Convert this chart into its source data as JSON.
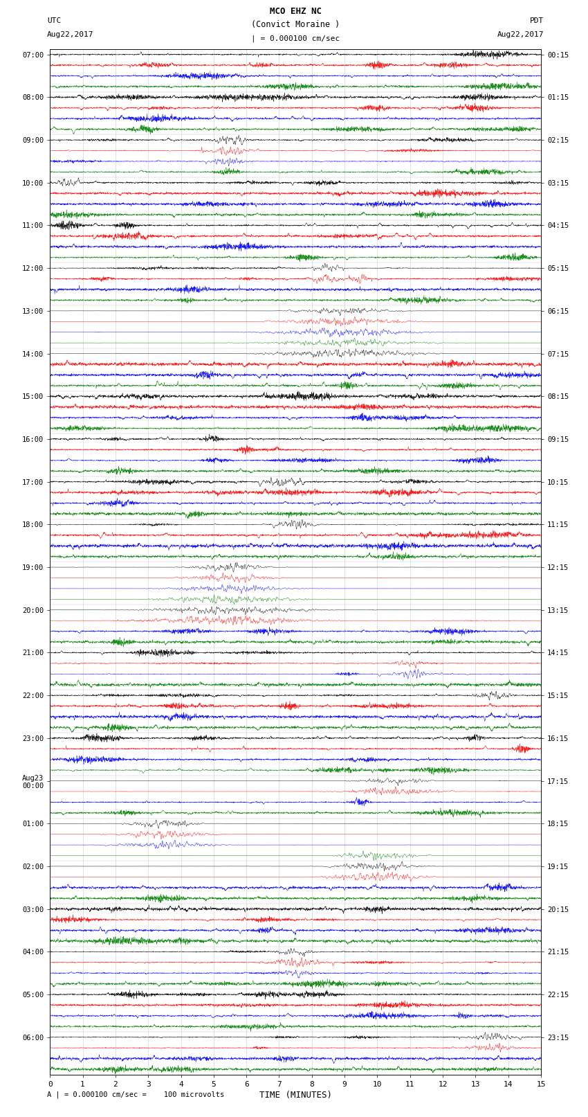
{
  "title_line1": "MCO EHZ NC",
  "title_line2": "(Convict Moraine )",
  "scale_label": "| = 0.000100 cm/sec",
  "left_header_line1": "UTC",
  "left_header_line2": "Aug22,2017",
  "right_header_line1": "PDT",
  "right_header_line2": "Aug22,2017",
  "bottom_label": "TIME (MINUTES)",
  "bottom_note": "A | = 0.000100 cm/sec =    100 microvolts",
  "num_rows": 96,
  "xlim": [
    0,
    15
  ],
  "xticks": [
    0,
    1,
    2,
    3,
    4,
    5,
    6,
    7,
    8,
    9,
    10,
    11,
    12,
    13,
    14,
    15
  ],
  "colors_cycle": [
    "black",
    "red",
    "blue",
    "green"
  ],
  "bg_color": "#ffffff",
  "figsize": [
    8.5,
    16.13
  ],
  "dpi": 100,
  "left_label_rows": [
    0,
    4,
    8,
    12,
    16,
    20,
    24,
    28,
    32,
    36,
    40,
    44,
    48,
    52,
    56,
    60,
    64,
    68,
    72,
    76,
    80,
    84,
    88,
    92
  ],
  "utc_labels": [
    "07:00",
    "08:00",
    "09:00",
    "10:00",
    "11:00",
    "12:00",
    "13:00",
    "14:00",
    "15:00",
    "16:00",
    "17:00",
    "18:00",
    "19:00",
    "20:00",
    "21:00",
    "22:00",
    "23:00",
    "Aug23\n00:00",
    "01:00",
    "02:00",
    "03:00",
    "04:00",
    "05:00",
    "06:00"
  ],
  "pdt_labels": [
    "00:15",
    "01:15",
    "02:15",
    "03:15",
    "04:15",
    "05:15",
    "06:15",
    "07:15",
    "08:15",
    "09:15",
    "10:15",
    "11:15",
    "12:15",
    "13:15",
    "14:15",
    "15:15",
    "16:15",
    "17:15",
    "18:15",
    "19:15",
    "20:15",
    "21:15",
    "22:15",
    "23:15"
  ]
}
